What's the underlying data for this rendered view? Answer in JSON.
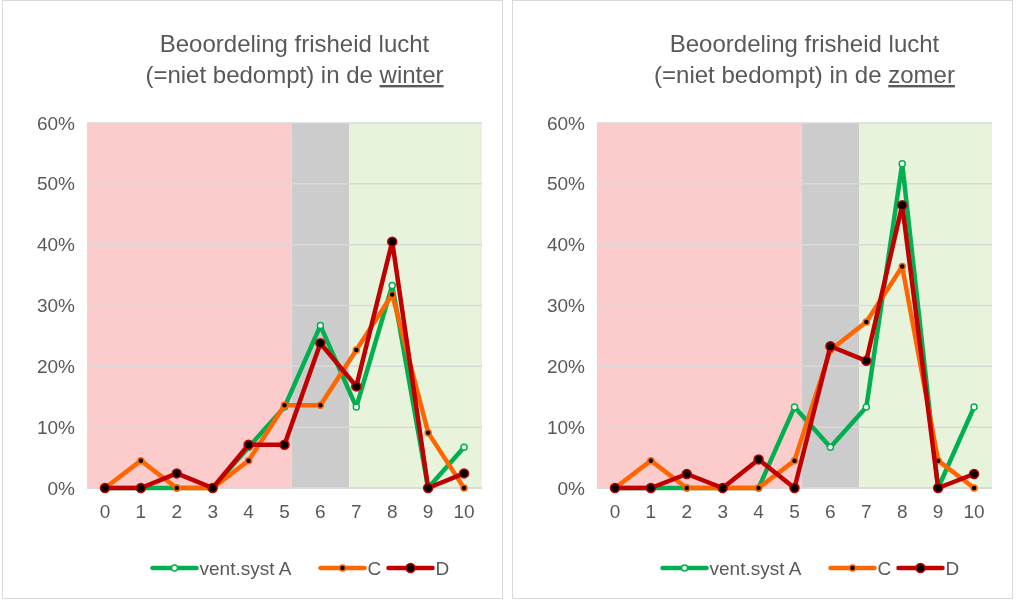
{
  "chart_data": [
    {
      "type": "line",
      "title": "Beoordeling frisheid lucht\n(=niet bedompt) in de winter",
      "x": [
        0,
        1,
        2,
        3,
        4,
        5,
        6,
        7,
        8,
        9,
        10
      ],
      "xlim": [
        -0.5,
        10.5
      ],
      "xticks": [
        0,
        1,
        2,
        3,
        4,
        5,
        6,
        7,
        8,
        9,
        10
      ],
      "ylim": [
        0,
        60
      ],
      "yticks": [
        {
          "value": 0,
          "label": "0%"
        },
        {
          "value": 10,
          "label": "10%"
        },
        {
          "value": 20,
          "label": "20%"
        },
        {
          "value": 30,
          "label": "30%"
        },
        {
          "value": 40,
          "label": "40%"
        },
        {
          "value": 50,
          "label": "50%"
        },
        {
          "value": 60,
          "label": "60%"
        }
      ],
      "grid": "y",
      "legend": "bottom",
      "marker": "circle",
      "bands": [
        {
          "axis": "x",
          "from": -0.5,
          "to": 5.2,
          "color": "#fccbcb"
        },
        {
          "axis": "x",
          "from": 5.2,
          "to": 6.8,
          "color": "#cccccc"
        },
        {
          "axis": "x",
          "from": 6.8,
          "to": 10.5,
          "color": "#e8f3dc"
        }
      ],
      "series": [
        {
          "name": "vent.syst A",
          "color": "#00b050",
          "values": [
            0,
            0,
            0,
            0,
            6.7,
            13.3,
            26.7,
            13.3,
            33.3,
            0,
            6.7
          ]
        },
        {
          "name": "C",
          "color": "#ff6600",
          "values": [
            0,
            4.5,
            0,
            0,
            4.5,
            13.6,
            13.6,
            22.7,
            31.8,
            9.1,
            0
          ]
        },
        {
          "name": "D",
          "color": "#c00000",
          "values": [
            0,
            0,
            2.4,
            0,
            7.1,
            7.1,
            23.8,
            16.7,
            40.5,
            0,
            2.4
          ]
        }
      ]
    },
    {
      "type": "line",
      "title": "Beoordeling frisheid lucht\n(=niet bedompt) in de zomer",
      "x": [
        0,
        1,
        2,
        3,
        4,
        5,
        6,
        7,
        8,
        9,
        10
      ],
      "xlim": [
        -0.5,
        10.5
      ],
      "xticks": [
        0,
        1,
        2,
        3,
        4,
        5,
        6,
        7,
        8,
        9,
        10
      ],
      "ylim": [
        0,
        60
      ],
      "yticks": [
        {
          "value": 0,
          "label": "0%"
        },
        {
          "value": 10,
          "label": "10%"
        },
        {
          "value": 20,
          "label": "20%"
        },
        {
          "value": 30,
          "label": "30%"
        },
        {
          "value": 40,
          "label": "40%"
        },
        {
          "value": 50,
          "label": "50%"
        },
        {
          "value": 60,
          "label": "60%"
        }
      ],
      "grid": "y",
      "legend": "bottom",
      "marker": "circle",
      "bands": [
        {
          "axis": "x",
          "from": -0.5,
          "to": 5.2,
          "color": "#fccbcb"
        },
        {
          "axis": "x",
          "from": 5.2,
          "to": 6.8,
          "color": "#cccccc"
        },
        {
          "axis": "x",
          "from": 6.8,
          "to": 10.5,
          "color": "#e8f3dc"
        }
      ],
      "series": [
        {
          "name": "vent.syst A",
          "color": "#00b050",
          "values": [
            0,
            0,
            0,
            0,
            0,
            13.3,
            6.7,
            13.3,
            53.3,
            0,
            13.3
          ]
        },
        {
          "name": "C",
          "color": "#ff6600",
          "values": [
            0,
            4.5,
            0,
            0,
            0,
            4.5,
            22.7,
            27.3,
            36.4,
            4.5,
            0
          ]
        },
        {
          "name": "D",
          "color": "#c00000",
          "values": [
            0,
            0,
            2.3,
            0,
            4.7,
            0,
            23.3,
            20.9,
            46.5,
            0,
            2.3
          ]
        }
      ]
    }
  ]
}
